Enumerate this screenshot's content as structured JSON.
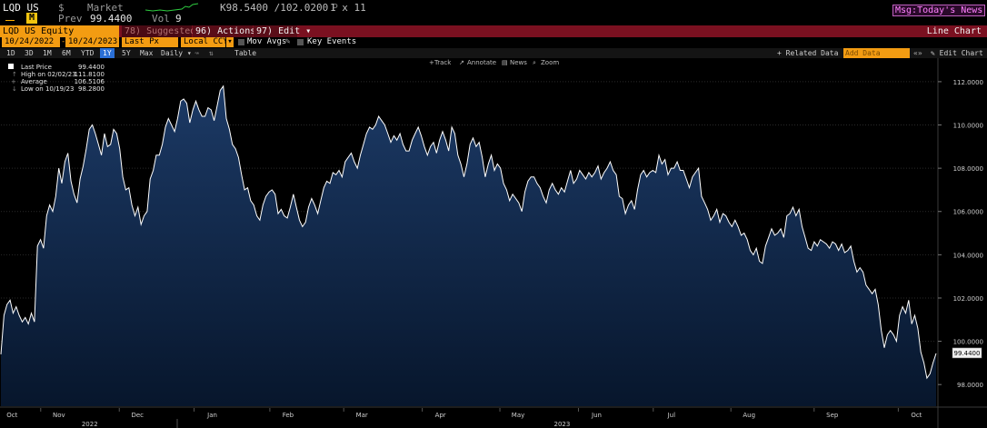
{
  "header": {
    "ticker": "LQD US",
    "currency_symbol": "$",
    "market_label": "Market",
    "range_text": "K98.5400 /102.0200",
    "range_suffix": "P",
    "size_text": "1 x 11",
    "prev_label": "Prev",
    "prev_value": "99.4400",
    "vol_label": "Vol",
    "vol_value": "9",
    "msg_label": "Msg:Today's News"
  },
  "toolbar": {
    "security": "LQD US Equity",
    "suggested": "Suggested Charts",
    "suggested_num": "78",
    "actions": "Actions",
    "actions_num": "96",
    "edit": "Edit",
    "edit_num": "97",
    "chart_type": "Line Chart"
  },
  "selectors": {
    "start_date": "10/24/2022",
    "end_date": "10/24/2023",
    "field": "Last Px",
    "currency": "Local CCY",
    "mov_avgs": "Mov Avgs",
    "key_events": "Key Events"
  },
  "periods": {
    "items": [
      "1D",
      "3D",
      "1M",
      "6M",
      "YTD",
      "1Y",
      "5Y",
      "Max"
    ],
    "selected": "1Y",
    "frequency": "Daily",
    "table": "Table",
    "related": "Related Data",
    "add_data": "Add Data",
    "edit_chart": "Edit Chart"
  },
  "chart_tools": [
    "Track",
    "Annotate",
    "News",
    "Zoom"
  ],
  "legend": [
    {
      "label": "Last Price",
      "value": "99.4400"
    },
    {
      "label": "High on 02/02/23",
      "value": "111.8100"
    },
    {
      "label": "Average",
      "value": "106.5106"
    },
    {
      "label": "Low on 10/19/23",
      "value": "98.2800"
    }
  ],
  "colors": {
    "line": "#ffffff",
    "fill_top": "#1c3a66",
    "fill_bottom": "#07162c",
    "accent": "#f39c12",
    "bar": "#7a1020"
  },
  "chart_data": {
    "type": "area",
    "title": "",
    "xlabel": "",
    "ylabel": "",
    "ylim": [
      97.0,
      112.5
    ],
    "y_ticks": [
      "98.0000",
      "100.0000",
      "102.0000",
      "104.0000",
      "106.0000",
      "108.0000",
      "110.0000",
      "112.0000"
    ],
    "last_value_label": "99.4400",
    "month_labels": [
      "Oct",
      "Nov",
      "Dec",
      "Jan",
      "Feb",
      "Mar",
      "Apr",
      "May",
      "Jun",
      "Jul",
      "Aug",
      "Sep",
      "Oct"
    ],
    "year_labels": [
      "2022",
      "2023"
    ],
    "series": [
      {
        "values": [
          99.4,
          101.2,
          101.7,
          101.9,
          101.3,
          101.6,
          101.2,
          100.9,
          101.1,
          100.8,
          101.3,
          100.9,
          104.4,
          104.7,
          104.3,
          105.8,
          106.3,
          106.0,
          106.7,
          108.0,
          107.3,
          108.3,
          108.7,
          107.4,
          106.8,
          106.4,
          107.5,
          108.1,
          108.9,
          109.8,
          110.0,
          109.6,
          109.1,
          108.6,
          109.6,
          109.0,
          109.1,
          109.8,
          109.6,
          108.9,
          107.6,
          107.0,
          107.1,
          106.3,
          105.8,
          106.2,
          105.4,
          105.8,
          106.0,
          107.5,
          107.9,
          108.6,
          108.6,
          109.1,
          109.9,
          110.3,
          110.0,
          109.7,
          110.3,
          111.1,
          111.2,
          111.0,
          110.1,
          110.7,
          111.1,
          110.7,
          110.4,
          110.4,
          110.8,
          110.7,
          110.2,
          110.9,
          111.6,
          111.8,
          110.3,
          109.8,
          109.1,
          108.9,
          108.5,
          107.7,
          107.0,
          107.1,
          106.5,
          106.3,
          105.8,
          105.6,
          106.3,
          106.7,
          106.9,
          107.0,
          106.8,
          105.9,
          106.1,
          105.8,
          105.7,
          106.2,
          106.8,
          106.2,
          105.6,
          105.3,
          105.5,
          106.2,
          106.6,
          106.3,
          105.9,
          106.5,
          107.1,
          107.4,
          107.3,
          107.8,
          107.7,
          107.9,
          107.6,
          108.3,
          108.5,
          108.7,
          108.3,
          108.0,
          108.6,
          109.1,
          109.6,
          109.9,
          109.8,
          110.0,
          110.4,
          110.2,
          110.0,
          109.6,
          109.2,
          109.5,
          109.3,
          109.6,
          109.1,
          108.8,
          108.8,
          109.3,
          109.6,
          109.9,
          109.5,
          109.0,
          108.6,
          109.0,
          109.2,
          108.7,
          109.3,
          109.7,
          109.3,
          108.8,
          109.9,
          109.6,
          108.6,
          108.2,
          107.6,
          108.2,
          109.1,
          109.4,
          109.0,
          109.2,
          108.5,
          107.6,
          108.2,
          108.6,
          107.9,
          108.2,
          108.0,
          107.3,
          107.0,
          106.5,
          106.8,
          106.6,
          106.4,
          106.0,
          106.9,
          107.4,
          107.6,
          107.6,
          107.3,
          107.1,
          106.7,
          106.4,
          107.0,
          107.3,
          107.0,
          106.8,
          107.1,
          106.9,
          107.4,
          107.9,
          107.3,
          107.5,
          107.9,
          107.7,
          107.5,
          107.8,
          107.6,
          107.8,
          108.1,
          107.5,
          107.8,
          108.0,
          108.3,
          107.9,
          107.7,
          106.7,
          106.6,
          105.9,
          106.3,
          106.5,
          106.1,
          107.0,
          107.7,
          107.9,
          107.6,
          107.8,
          107.9,
          107.8,
          108.6,
          108.2,
          108.4,
          107.7,
          108.0,
          108.0,
          108.3,
          107.9,
          107.9,
          107.5,
          107.1,
          107.6,
          107.8,
          108.0,
          106.7,
          106.4,
          106.1,
          105.6,
          105.8,
          106.1,
          105.5,
          105.9,
          105.8,
          105.5,
          105.3,
          105.6,
          105.3,
          104.9,
          105.0,
          104.7,
          104.2,
          104.0,
          104.3,
          103.7,
          103.6,
          104.4,
          104.8,
          105.2,
          104.9,
          105.0,
          105.2,
          104.8,
          105.8,
          105.9,
          106.2,
          105.8,
          106.1,
          105.3,
          104.8,
          104.3,
          104.2,
          104.6,
          104.4,
          104.7,
          104.6,
          104.5,
          104.3,
          104.6,
          104.5,
          104.2,
          104.5,
          104.1,
          104.2,
          104.4,
          103.7,
          103.2,
          103.4,
          103.2,
          102.6,
          102.4,
          102.2,
          102.4,
          101.7,
          100.5,
          99.7,
          100.3,
          100.5,
          100.3,
          100.0,
          101.2,
          101.6,
          101.3,
          101.9,
          100.8,
          101.2,
          100.6,
          99.5,
          99.0,
          98.3,
          98.5,
          99.0,
          99.44
        ]
      }
    ]
  }
}
